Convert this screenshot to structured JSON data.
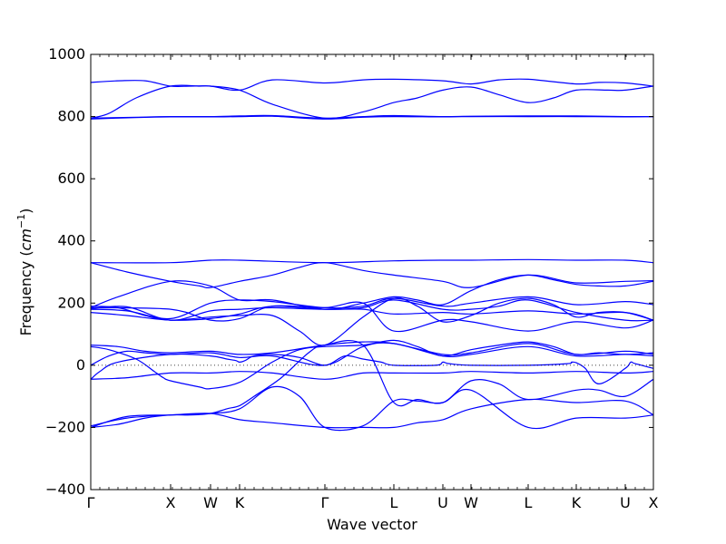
{
  "chart_data": {
    "type": "line",
    "xlabel": "Wave vector",
    "ylabel": "Frequency ($cm^{-1}$)",
    "ylabel_text": "Frequency (",
    "ylabel_unit": "cm",
    "ylabel_exp": "−1",
    "ylabel_close": ")",
    "ylim": [
      -400,
      1000
    ],
    "xlim": [
      0,
      620
    ],
    "yticks": [
      -400,
      -200,
      0,
      200,
      400,
      600,
      800,
      1000
    ],
    "xticks": [
      {
        "label": "Γ",
        "x": 0
      },
      {
        "label": "X",
        "x": 88
      },
      {
        "label": "W",
        "x": 132
      },
      {
        "label": "K",
        "x": 164
      },
      {
        "label": "Γ",
        "x": 258
      },
      {
        "label": "L",
        "x": 334
      },
      {
        "label": "U",
        "x": 388
      },
      {
        "label": "W",
        "x": 419
      },
      {
        "label": "L",
        "x": 482
      },
      {
        "label": "K",
        "x": 535
      },
      {
        "label": "U",
        "x": 589
      },
      {
        "label": "X",
        "x": 620
      }
    ],
    "zero_line": true,
    "line_color": "#0000ff",
    "series": [
      {
        "x": [
          0,
          30,
          60,
          88,
          110,
          132,
          164,
          200,
          258,
          300,
          334,
          388,
          419,
          450,
          482,
          535,
          560,
          589,
          620
        ],
        "y": [
          910,
          915,
          915,
          898,
          898,
          898,
          885,
          918,
          908,
          918,
          920,
          915,
          905,
          918,
          920,
          905,
          910,
          908,
          898
        ]
      },
      {
        "x": [
          0,
          20,
          50,
          88,
          120,
          132,
          164,
          200,
          258,
          300,
          334,
          360,
          388,
          419,
          450,
          482,
          510,
          535,
          570,
          589,
          620
        ],
        "y": [
          795,
          810,
          860,
          898,
          898,
          898,
          885,
          840,
          795,
          815,
          845,
          860,
          885,
          895,
          870,
          845,
          860,
          885,
          885,
          885,
          898
        ]
      },
      {
        "x": [
          0,
          50,
          88,
          132,
          164,
          200,
          258,
          300,
          334,
          388,
          419,
          482,
          535,
          589,
          620
        ],
        "y": [
          792,
          797,
          799,
          799,
          800,
          801,
          792,
          798,
          800,
          799,
          800,
          800,
          800,
          799,
          800
        ]
      },
      {
        "x": [
          0,
          50,
          88,
          132,
          164,
          200,
          258,
          300,
          334,
          388,
          419,
          482,
          535,
          589,
          620
        ],
        "y": [
          795,
          798,
          800,
          800,
          802,
          803,
          795,
          800,
          803,
          800,
          801,
          802,
          802,
          800,
          800
        ]
      },
      {
        "x": [
          0,
          88,
          132,
          164,
          258,
          334,
          388,
          419,
          482,
          535,
          589,
          620
        ],
        "y": [
          330,
          330,
          338,
          338,
          330,
          336,
          338,
          338,
          340,
          338,
          338,
          330
        ]
      },
      {
        "x": [
          0,
          40,
          88,
          120,
          132,
          164,
          200,
          230,
          258,
          300,
          334,
          388,
          419,
          482,
          535,
          589,
          620
        ],
        "y": [
          330,
          300,
          270,
          255,
          250,
          270,
          290,
          315,
          330,
          305,
          290,
          270,
          250,
          290,
          265,
          270,
          272
        ]
      },
      {
        "x": [
          0,
          30,
          88,
          132,
          164,
          200,
          258,
          300,
          334,
          360,
          388,
          419,
          450,
          482,
          510,
          535,
          560,
          589,
          620
        ],
        "y": [
          185,
          220,
          270,
          255,
          210,
          210,
          180,
          200,
          220,
          210,
          195,
          240,
          275,
          290,
          275,
          260,
          255,
          255,
          270
        ]
      },
      {
        "x": [
          0,
          40,
          88,
          132,
          164,
          200,
          258,
          300,
          334,
          388,
          419,
          482,
          535,
          589,
          620
        ],
        "y": [
          180,
          175,
          150,
          200,
          210,
          205,
          185,
          190,
          215,
          190,
          200,
          220,
          195,
          205,
          195
        ]
      },
      {
        "x": [
          0,
          40,
          88,
          132,
          164,
          200,
          258,
          300,
          334,
          388,
          419,
          482,
          535,
          589,
          620
        ],
        "y": [
          170,
          160,
          145,
          150,
          165,
          190,
          180,
          180,
          165,
          170,
          165,
          175,
          165,
          170,
          145
        ]
      },
      {
        "x": [
          0,
          30,
          60,
          88,
          132,
          164,
          200,
          230,
          258,
          300,
          334,
          360,
          388,
          419,
          450,
          482,
          510,
          535,
          560,
          589,
          620
        ],
        "y": [
          190,
          185,
          160,
          145,
          155,
          160,
          160,
          110,
          65,
          155,
          215,
          190,
          140,
          160,
          200,
          215,
          195,
          155,
          170,
          170,
          145
        ]
      },
      {
        "x": [
          0,
          40,
          88,
          132,
          164,
          200,
          258,
          300,
          334,
          388,
          419,
          450,
          482,
          535,
          589,
          620
        ],
        "y": [
          182,
          188,
          145,
          175,
          180,
          185,
          180,
          185,
          210,
          180,
          180,
          190,
          210,
          170,
          145,
          145
        ]
      },
      {
        "x": [
          0,
          88,
          132,
          164,
          200,
          258,
          300,
          334,
          388,
          419,
          482,
          535,
          589,
          620
        ],
        "y": [
          185,
          180,
          145,
          150,
          190,
          185,
          200,
          110,
          145,
          140,
          110,
          140,
          120,
          145
        ]
      },
      {
        "x": [
          0,
          20,
          50,
          70,
          80,
          88,
          120,
          132,
          164,
          200,
          230,
          258,
          300,
          334,
          360,
          388,
          419,
          450,
          482,
          510,
          535,
          560,
          589,
          620
        ],
        "y": [
          60,
          50,
          20,
          -20,
          -40,
          -50,
          -70,
          -75,
          -55,
          10,
          50,
          60,
          65,
          80,
          60,
          30,
          50,
          65,
          75,
          60,
          35,
          40,
          35,
          40
        ]
      },
      {
        "x": [
          0,
          30,
          60,
          88,
          132,
          164,
          200,
          258,
          300,
          334,
          388,
          419,
          482,
          535,
          589,
          620
        ],
        "y": [
          65,
          60,
          45,
          40,
          45,
          35,
          40,
          65,
          75,
          70,
          35,
          40,
          70,
          35,
          45,
          35
        ]
      },
      {
        "x": [
          0,
          20,
          40,
          60,
          88,
          132,
          164,
          200,
          258,
          300,
          334,
          388,
          419,
          482,
          535,
          589,
          620
        ],
        "y": [
          0,
          30,
          45,
          40,
          35,
          40,
          25,
          30,
          0,
          60,
          70,
          30,
          35,
          60,
          30,
          35,
          30
        ]
      },
      {
        "x": [
          0,
          10,
          30,
          88,
          132,
          150,
          160,
          164,
          170,
          180,
          200,
          230,
          258,
          280,
          300,
          320,
          334,
          380,
          388,
          395,
          419,
          482,
          525,
          530,
          535,
          545,
          560,
          589,
          595,
          600,
          620
        ],
        "y": [
          -45,
          -20,
          10,
          35,
          30,
          20,
          15,
          10,
          15,
          30,
          35,
          25,
          0,
          30,
          20,
          10,
          0,
          0,
          10,
          5,
          0,
          0,
          5,
          10,
          8,
          -10,
          -60,
          -10,
          10,
          5,
          -10
        ]
      },
      {
        "x": [
          0,
          40,
          88,
          132,
          164,
          200,
          258,
          300,
          334,
          388,
          419,
          482,
          535,
          589,
          620
        ],
        "y": [
          -45,
          -40,
          -25,
          -25,
          -20,
          -25,
          -45,
          -25,
          -25,
          -25,
          -20,
          -25,
          -20,
          -25,
          -20
        ]
      },
      {
        "x": [
          0,
          30,
          60,
          88,
          110,
          132,
          150,
          164,
          180,
          210,
          240,
          258,
          300,
          334,
          360,
          388,
          419,
          450,
          482,
          535,
          560,
          589,
          620
        ],
        "y": [
          -200,
          -190,
          -170,
          -160,
          -160,
          -155,
          -140,
          -130,
          -100,
          -40,
          40,
          65,
          65,
          -120,
          -110,
          -120,
          -50,
          -60,
          -110,
          -80,
          -80,
          -100,
          -45
        ]
      },
      {
        "x": [
          0,
          40,
          88,
          132,
          164,
          200,
          230,
          258,
          300,
          334,
          360,
          388,
          419,
          482,
          535,
          589,
          620
        ],
        "y": [
          -195,
          -170,
          -160,
          -155,
          -140,
          -70,
          -100,
          -200,
          -195,
          -115,
          -115,
          -120,
          -80,
          -200,
          -170,
          -170,
          -160
        ]
      },
      {
        "x": [
          0,
          40,
          88,
          132,
          164,
          200,
          258,
          300,
          334,
          360,
          388,
          419,
          482,
          535,
          589,
          620
        ],
        "y": [
          -200,
          -165,
          -160,
          -155,
          -175,
          -185,
          -200,
          -200,
          -200,
          -185,
          -175,
          -140,
          -110,
          -120,
          -115,
          -160
        ]
      }
    ]
  }
}
